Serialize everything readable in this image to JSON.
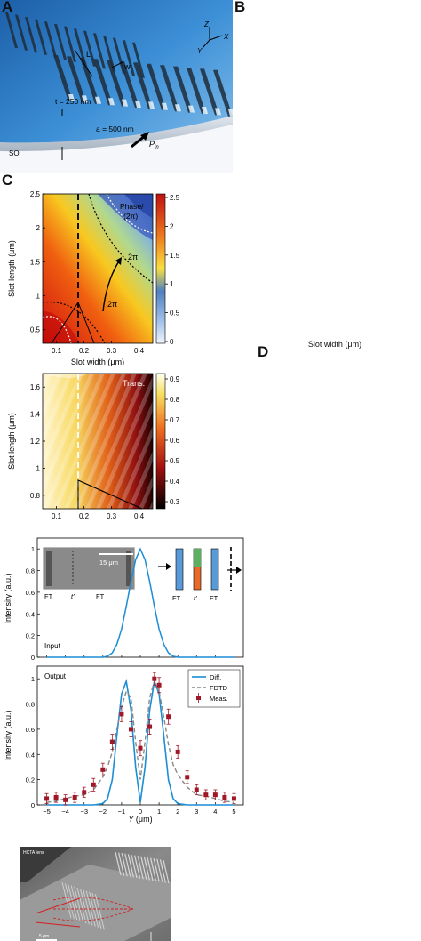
{
  "panels": {
    "a": "A",
    "b": "B",
    "c": "C",
    "d": "D"
  },
  "panelA": {
    "dim_L": "L",
    "dim_w": "w",
    "thickness": "t = 250 nm",
    "period": "a = 500 nm",
    "substrate": "SOI",
    "power": "Pin",
    "power_base": "P",
    "power_sub": "in",
    "axis_z": "Z",
    "axis_x": "X",
    "axis_y": "Y",
    "colors": {
      "substrate": "#2f7fc8",
      "slot": "#1f2b3a"
    }
  },
  "panelB": {
    "xlabel": "Slot width (μm)",
    "ylabel": "Slot length (μm)",
    "xticks": [
      "0.1",
      "0.2",
      "0.3",
      "0.4"
    ],
    "xtick_values": [
      0.1,
      0.2,
      0.3,
      0.4
    ],
    "top": {
      "label_line1": "Phase/",
      "label_line2": "(2π)",
      "yticks": [
        "0.5",
        "1",
        "1.5",
        "2",
        "2.5"
      ],
      "ytick_values": [
        0.5,
        1,
        1.5,
        2,
        2.5
      ],
      "cbar_ticks": [
        "0",
        "0.5",
        "1",
        "1.5",
        "2",
        "2.5"
      ],
      "cbar_values": [
        0,
        0.5,
        1,
        1.5,
        2,
        2.5
      ],
      "contour_label_1": "2π",
      "contour_label_2": "2π"
    },
    "bottom": {
      "label": "Trans.",
      "yticks": [
        "0.8",
        "1",
        "1.2",
        "1.4",
        "1.6"
      ],
      "ytick_values": [
        0.8,
        1,
        1.2,
        1.4,
        1.6
      ],
      "cbar_ticks": [
        "0.3",
        "0.4",
        "0.5",
        "0.6",
        "0.7",
        "0.8",
        "0.9"
      ],
      "cbar_values": [
        0.3,
        0.4,
        0.5,
        0.6,
        0.7,
        0.8,
        0.9
      ]
    }
  },
  "panelC": {
    "ylabel": "Intensity (a.u.)",
    "xlabel_base": "Y",
    "xlabel_unit": " (μm)",
    "input_label": "Input",
    "output_label": "Output",
    "scale_bar": "15 μm",
    "inset_labels": [
      "FT",
      "t′",
      "FT"
    ],
    "schematic_labels": [
      "FT",
      "t′",
      "FT"
    ],
    "xticks": [
      "−5",
      "−4",
      "−3",
      "−2",
      "−1",
      "0",
      "1",
      "2",
      "3",
      "4",
      "5"
    ],
    "top_yticks": [
      "0",
      "0.2",
      "0.4",
      "0.6",
      "0.8",
      "1"
    ],
    "bottom_yticks": [
      "0",
      "0.2",
      "0.4",
      "0.6",
      "0.8",
      "1"
    ],
    "legend": [
      "Diff.",
      "FDTD",
      "Meas."
    ]
  },
  "panelD": {
    "label_tl": "HCTA\nlens",
    "scale": "5 μm"
  },
  "chart_data": [
    {
      "type": "line",
      "title": "Input",
      "ylabel": "Intensity (a.u.)",
      "xlim": [
        -5.5,
        5.5
      ],
      "ylim": [
        0,
        1.1
      ],
      "x": [
        -5,
        -4.5,
        -4,
        -3.5,
        -3,
        -2.5,
        -2,
        -1.75,
        -1.5,
        -1.25,
        -1,
        -0.75,
        -0.5,
        -0.25,
        0,
        0.25,
        0.5,
        0.75,
        1,
        1.25,
        1.5,
        1.75,
        2,
        2.5,
        3,
        3.5,
        4,
        4.5,
        5
      ],
      "series": [
        {
          "values": [
            0,
            0,
            0,
            0,
            0,
            0,
            0,
            0.01,
            0.04,
            0.12,
            0.26,
            0.47,
            0.7,
            0.9,
            1.0,
            0.9,
            0.7,
            0.47,
            0.26,
            0.12,
            0.04,
            0.01,
            0,
            0,
            0,
            0,
            0,
            0,
            0
          ]
        }
      ]
    },
    {
      "type": "line",
      "title": "Output",
      "xlabel": "Y (μm)",
      "ylabel": "Intensity (a.u.)",
      "xlim": [
        -5.5,
        5.5
      ],
      "ylim": [
        0,
        1.1
      ],
      "legend": "top-right",
      "x": [
        -5,
        -4.5,
        -4,
        -3.5,
        -3,
        -2.5,
        -2,
        -1.75,
        -1.5,
        -1.25,
        -1,
        -0.75,
        -0.5,
        -0.25,
        0,
        0.25,
        0.5,
        0.75,
        1,
        1.25,
        1.5,
        1.75,
        2,
        2.5,
        3,
        3.5,
        4,
        4.5,
        5
      ],
      "series": [
        {
          "name": "Diff.",
          "values": [
            0,
            0,
            0,
            0,
            0,
            0,
            0.01,
            0.05,
            0.2,
            0.55,
            0.88,
            0.98,
            0.75,
            0.3,
            0.02,
            0.3,
            0.75,
            0.98,
            0.88,
            0.55,
            0.2,
            0.05,
            0.01,
            0,
            0,
            0,
            0,
            0,
            0
          ]
        },
        {
          "name": "FDTD",
          "values": [
            0.02,
            0.03,
            0.05,
            0.07,
            0.08,
            0.12,
            0.22,
            0.3,
            0.42,
            0.6,
            0.78,
            0.9,
            0.85,
            0.5,
            0.2,
            0.5,
            0.85,
            0.98,
            0.9,
            0.7,
            0.48,
            0.32,
            0.24,
            0.14,
            0.08,
            0.07,
            0.05,
            0.03,
            0.02
          ]
        }
      ],
      "points": {
        "name": "Meas.",
        "x": [
          -5,
          -4.5,
          -4,
          -3.5,
          -3,
          -2.5,
          -2,
          -1.5,
          -1,
          -0.5,
          0,
          0.5,
          0.75,
          1,
          1.5,
          2,
          2.5,
          3,
          3.5,
          4,
          4.5,
          5
        ],
        "y": [
          0.05,
          0.06,
          0.04,
          0.06,
          0.1,
          0.16,
          0.28,
          0.5,
          0.72,
          0.6,
          0.45,
          0.62,
          1.0,
          0.95,
          0.7,
          0.42,
          0.22,
          0.12,
          0.08,
          0.08,
          0.06,
          0.05
        ],
        "err": [
          0.04,
          0.04,
          0.04,
          0.04,
          0.04,
          0.05,
          0.05,
          0.06,
          0.06,
          0.06,
          0.06,
          0.06,
          0.05,
          0.06,
          0.06,
          0.05,
          0.05,
          0.04,
          0.04,
          0.04,
          0.04,
          0.04
        ]
      }
    }
  ]
}
